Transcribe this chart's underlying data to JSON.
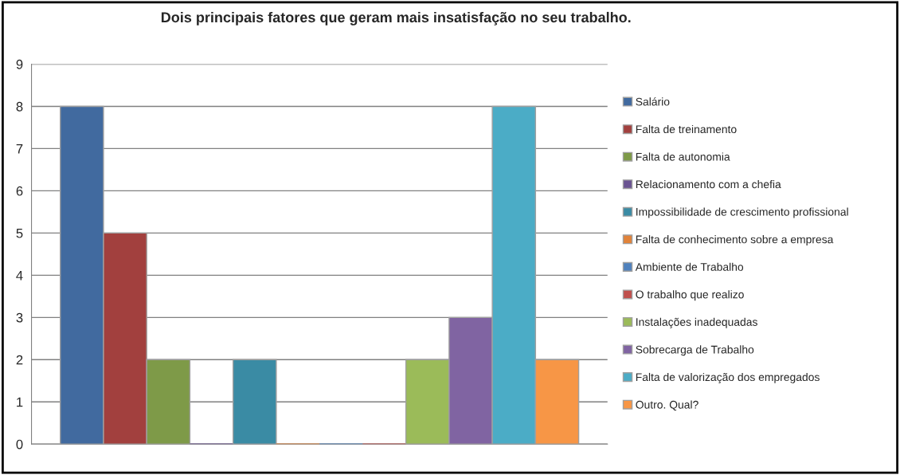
{
  "chart_data": {
    "type": "bar",
    "title": "Dois principais fatores que geram mais insatisfação no seu trabalho.",
    "categories": [
      null
    ],
    "series": [
      {
        "name": "Salário",
        "color": "#416a9f",
        "values": [
          8
        ]
      },
      {
        "name": "Falta de treinamento",
        "color": "#a2403e",
        "values": [
          5
        ]
      },
      {
        "name": "Falta de autonomia",
        "color": "#7e9a48",
        "values": [
          2
        ]
      },
      {
        "name": "Relacionamento com a chefia",
        "color": "#6a5391",
        "values": [
          0
        ]
      },
      {
        "name": "Impossibilidade de crescimento profissional",
        "color": "#3a8ba4",
        "values": [
          2
        ]
      },
      {
        "name": "Falta de conhecimento sobre a empresa",
        "color": "#e1833a",
        "values": [
          0
        ]
      },
      {
        "name": "Ambiente de Trabalho",
        "color": "#4f81bd",
        "values": [
          0
        ]
      },
      {
        "name": "O trabalho que realizo",
        "color": "#c0504d",
        "values": [
          0
        ]
      },
      {
        "name": "Instalações inadequadas",
        "color": "#9bbb59",
        "values": [
          2
        ]
      },
      {
        "name": "Sobrecarga de Trabalho",
        "color": "#8064a2",
        "values": [
          3
        ]
      },
      {
        "name": "Falta de valorização dos empregados",
        "color": "#4bacc6",
        "values": [
          8
        ]
      },
      {
        "name": "Outro. Qual?",
        "color": "#f79646",
        "values": [
          2
        ]
      }
    ],
    "ylim": [
      0,
      9
    ],
    "yticks": [
      0,
      1,
      2,
      3,
      4,
      5,
      6,
      7,
      8,
      9
    ],
    "grid": "y",
    "legend": "right",
    "tick_labels": "y"
  }
}
